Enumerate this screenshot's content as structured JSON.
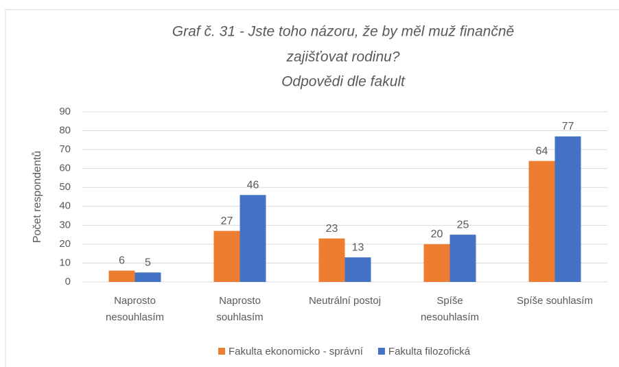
{
  "chart_data": {
    "type": "bar",
    "title": [
      "Graf č. 31 - Jste toho názoru, že by měl muž finančně",
      "zajišťovat rodinu?",
      "Odpovědi dle fakult"
    ],
    "y_label": "Počet respondentů",
    "categories": [
      [
        "Naprosto",
        "nesouhlasím"
      ],
      [
        "Naprosto",
        "souhlasím"
      ],
      [
        "Neutrální postoj"
      ],
      [
        "Spíše",
        "nesouhlasím"
      ],
      [
        "Spíše souhlasím"
      ]
    ],
    "series": [
      {
        "name": "Fakulta ekonomicko - správní",
        "color": "#ed7d31",
        "values": [
          6,
          27,
          23,
          20,
          64
        ]
      },
      {
        "name": "Fakulta filozofická",
        "color": "#4472c4",
        "values": [
          5,
          46,
          13,
          25,
          77
        ]
      }
    ],
    "ylim": [
      0,
      90
    ],
    "yticks": [
      0,
      10,
      20,
      30,
      40,
      50,
      60,
      70,
      80,
      90
    ],
    "grid": true,
    "legend": "bottom"
  }
}
